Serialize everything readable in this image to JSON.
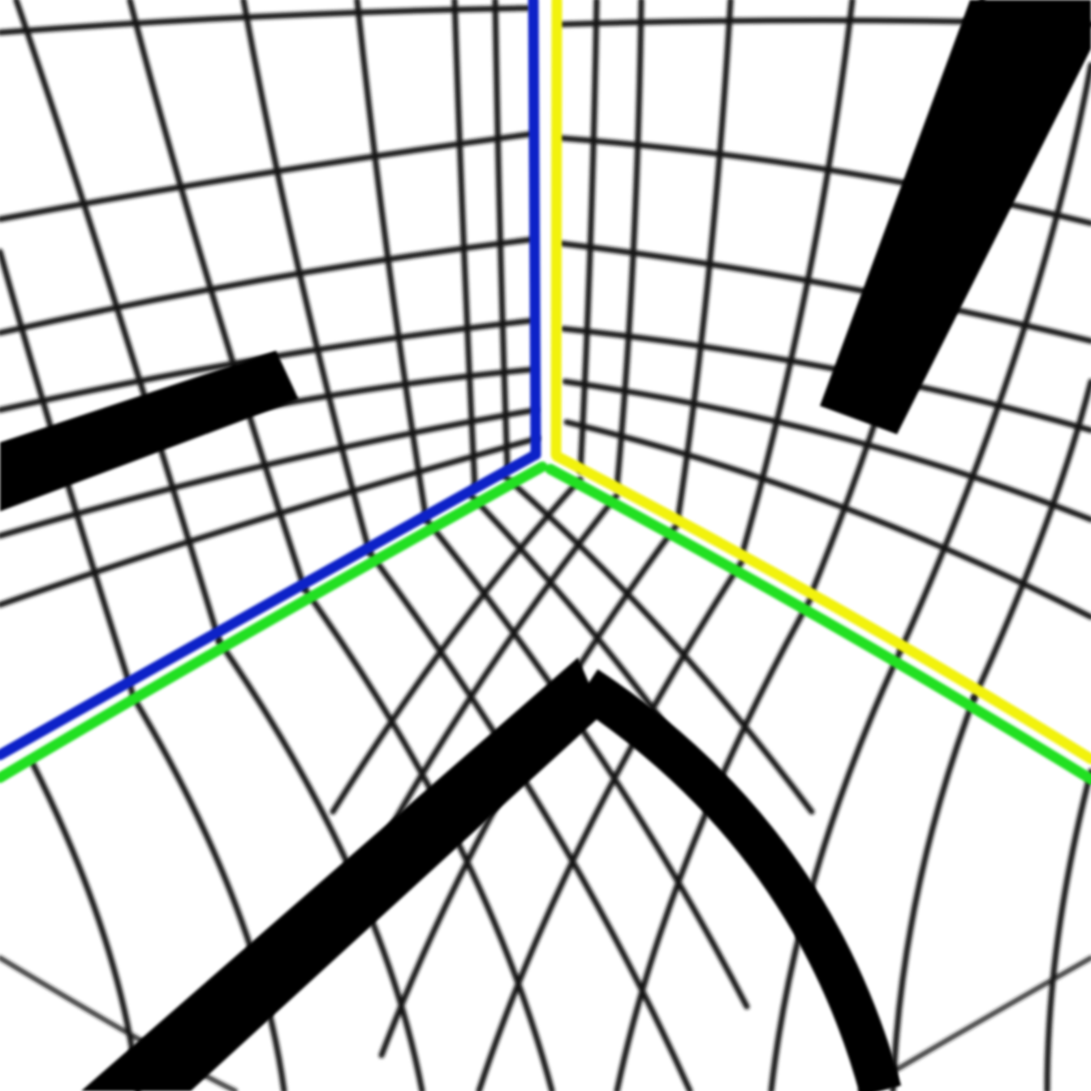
{
  "scene": {
    "background_color": "#ffffff",
    "grid_color": "#141414",
    "band_color": "#000000",
    "edges": [
      {
        "name": "left-wall-vertical",
        "color": "#1020c8"
      },
      {
        "name": "right-wall-vertical",
        "color": "#f2f20a"
      },
      {
        "name": "left-wall-floor",
        "color": "#1020c8"
      },
      {
        "name": "left-floor",
        "color": "#22e022"
      },
      {
        "name": "right-floor",
        "color": "#22e022"
      },
      {
        "name": "right-wall-floor",
        "color": "#f2f20a"
      }
    ]
  }
}
